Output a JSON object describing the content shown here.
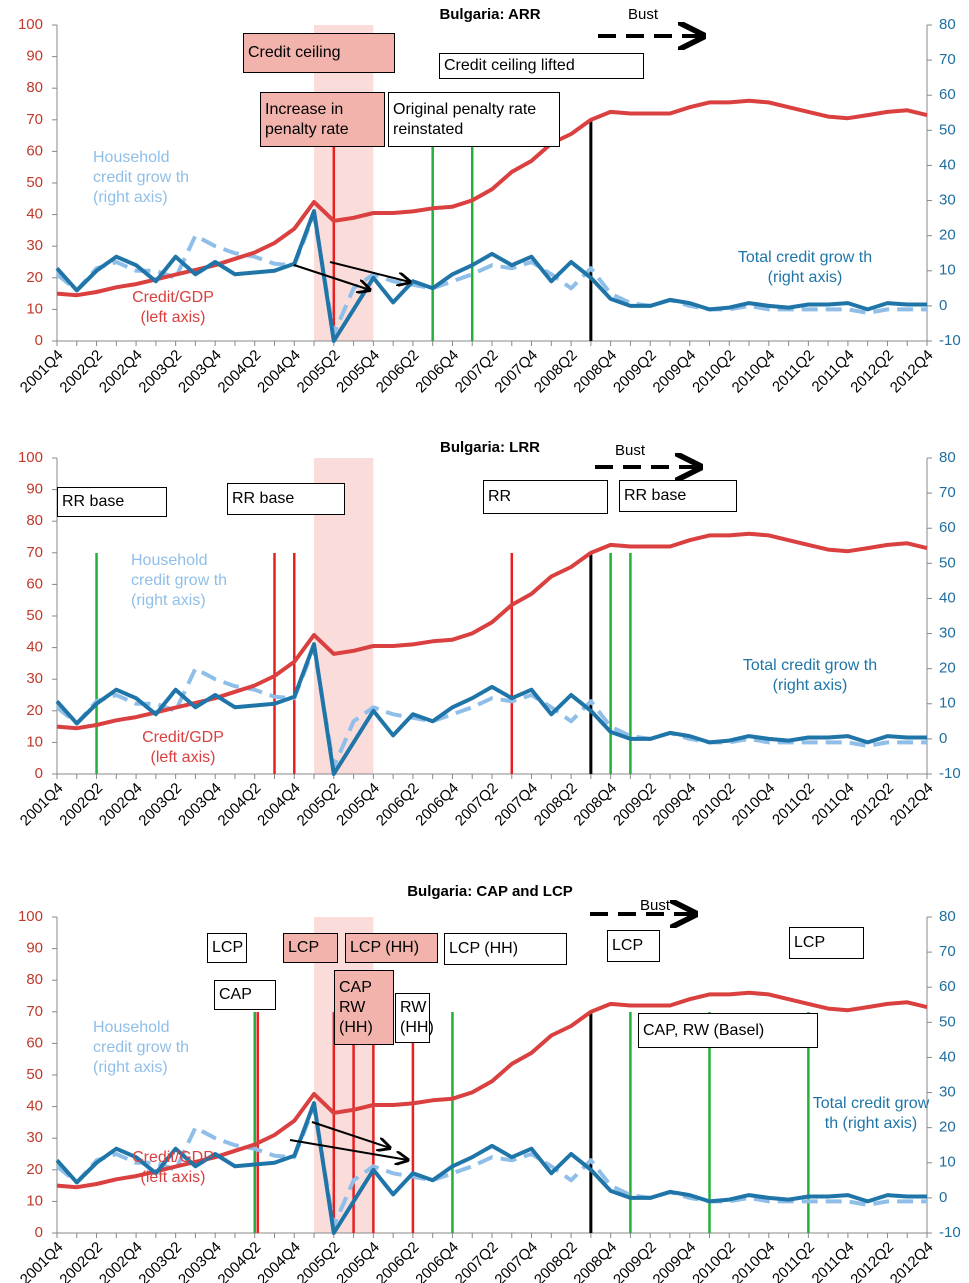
{
  "chart_data": [
    {
      "type": "line",
      "title": "Bulgaria: ARR",
      "categories": [
        "2001Q4",
        null,
        "2002Q2",
        null,
        "2002Q4",
        null,
        "2003Q2",
        null,
        "2003Q4",
        null,
        "2004Q2",
        null,
        "2004Q4",
        null,
        "2005Q2",
        null,
        "2005Q4",
        null,
        "2006Q2",
        null,
        "2006Q4",
        null,
        "2007Q2",
        null,
        "2007Q4",
        null,
        "2008Q2",
        null,
        "2008Q4",
        null,
        "2009Q2",
        null,
        "2009Q4",
        null,
        "2010Q2",
        null,
        "2010Q4",
        null,
        "2011Q2",
        null,
        "2011Q4",
        null,
        "2012Q2",
        null,
        "2012Q4"
      ],
      "ylim": [
        0,
        100
      ],
      "yticks": [
        0,
        10,
        20,
        30,
        40,
        50,
        60,
        70,
        80,
        90,
        100
      ],
      "y2lim": [
        -10,
        80
      ],
      "y2ticks": [
        -10,
        0,
        10,
        20,
        30,
        40,
        50,
        60,
        70,
        80
      ],
      "series": [
        {
          "name": "Household credit grow th (right axis)",
          "color": "#8fbfe8",
          "style": "dashed",
          "axis": "y2",
          "values": [
            9,
            4.4,
            10.7,
            12.5,
            10,
            10,
            8,
            20,
            17,
            15,
            14,
            12,
            11.6,
            26,
            -8,
            5,
            9,
            7,
            6,
            5,
            7,
            9,
            11.6,
            10.7,
            12.5,
            9,
            5,
            10.7,
            3.5,
            0.8,
            0,
            1.7,
            0,
            -1,
            -1,
            0,
            -1,
            -1,
            -1,
            -1,
            -1,
            -2,
            -1,
            -1,
            -1
          ]
        },
        {
          "name": "Credit/GDP (left axis)",
          "color": "#d9403f",
          "style": "solid",
          "values": [
            15,
            14.5,
            15.5,
            17,
            18,
            19.5,
            21,
            22.5,
            24,
            26,
            28,
            31,
            35.5,
            44,
            38,
            39,
            40.5,
            40.5,
            41,
            42,
            42.5,
            44.5,
            48,
            53.5,
            57,
            62.5,
            65.5,
            70,
            72.5,
            72,
            72,
            72,
            74,
            75.5,
            75.5,
            76,
            75.5,
            74,
            72.5,
            71,
            70.5,
            71.5,
            72.5,
            73,
            71.5
          ]
        },
        {
          "name": "Total credit grow th (right axis)",
          "color": "#1f75a8",
          "style": "solid",
          "axis": "y2",
          "values": [
            10.7,
            4.4,
            10,
            14,
            11.6,
            7,
            14,
            9,
            12.5,
            9,
            9.5,
            10,
            12,
            27,
            -10,
            -1,
            8,
            1,
            7,
            5,
            9,
            11.6,
            14.8,
            11.6,
            14,
            7,
            12.5,
            8,
            2,
            0,
            0,
            1.7,
            0.8,
            -1,
            -0.5,
            0.8,
            0,
            -0.5,
            0.4,
            0.4,
            0.8,
            -1,
            0.8,
            0.4,
            0.4
          ]
        }
      ],
      "shaded": [
        [
          "2005Q1",
          "2005Q4"
        ]
      ],
      "events": [
        {
          "x": "2005Q2",
          "color": "#e82020"
        },
        {
          "x": "2006Q3",
          "color": "#22b03a"
        },
        {
          "x": "2007Q1",
          "color": "#22b03a"
        },
        {
          "x": "2008Q3",
          "color": "#000000"
        }
      ],
      "annotations": [
        {
          "text": "Credit ceiling",
          "fill": "#f2b3ad"
        },
        {
          "text": "Increase in penalty rate",
          "fill": "#f2b3ad"
        },
        {
          "text": "Original penalty rate reinstated",
          "fill": "#ffffff"
        },
        {
          "text": "Credit ceiling lifted",
          "fill": "#ffffff"
        }
      ],
      "bust": "Bust"
    },
    {
      "type": "line",
      "title": "Bulgaria: LRR",
      "categories": [
        "2001Q4",
        null,
        "2002Q2",
        null,
        "2002Q4",
        null,
        "2003Q2",
        null,
        "2003Q4",
        null,
        "2004Q2",
        null,
        "2004Q4",
        null,
        "2005Q2",
        null,
        "2005Q4",
        null,
        "2006Q2",
        null,
        "2006Q4",
        null,
        "2007Q2",
        null,
        "2007Q4",
        null,
        "2008Q2",
        null,
        "2008Q4",
        null,
        "2009Q2",
        null,
        "2009Q4",
        null,
        "2010Q2",
        null,
        "2010Q4",
        null,
        "2011Q2",
        null,
        "2011Q4",
        null,
        "2012Q2",
        null,
        "2012Q4"
      ],
      "ylim": [
        0,
        100
      ],
      "yticks": [
        0,
        10,
        20,
        30,
        40,
        50,
        60,
        70,
        80,
        90,
        100
      ],
      "y2lim": [
        -10,
        80
      ],
      "y2ticks": [
        -10,
        0,
        10,
        20,
        30,
        40,
        50,
        60,
        70,
        80
      ],
      "series": [
        {
          "name": "Household credit grow th (right axis)",
          "color": "#8fbfe8",
          "style": "dashed",
          "axis": "y2",
          "values": [
            9,
            4.4,
            10.7,
            12.5,
            10,
            10,
            8,
            20,
            17,
            15,
            14,
            12,
            11.6,
            26,
            -8,
            5,
            9,
            7,
            6,
            5,
            7,
            9,
            11.6,
            10.7,
            12.5,
            9,
            5,
            10.7,
            3.5,
            0.8,
            0,
            1.7,
            0,
            -1,
            -1,
            0,
            -1,
            -1,
            -1,
            -1,
            -1,
            -2,
            -1,
            -1,
            -1
          ]
        },
        {
          "name": "Credit/GDP (left axis)",
          "color": "#d9403f",
          "style": "solid",
          "values": [
            15,
            14.5,
            15.5,
            17,
            18,
            19.5,
            21,
            22.5,
            24,
            26,
            28,
            31,
            35.5,
            44,
            38,
            39,
            40.5,
            40.5,
            41,
            42,
            42.5,
            44.5,
            48,
            53.5,
            57,
            62.5,
            65.5,
            70,
            72.5,
            72,
            72,
            72,
            74,
            75.5,
            75.5,
            76,
            75.5,
            74,
            72.5,
            71,
            70.5,
            71.5,
            72.5,
            73,
            71.5
          ]
        },
        {
          "name": "Total credit grow th (right axis)",
          "color": "#1f75a8",
          "style": "solid",
          "axis": "y2",
          "values": [
            10.7,
            4.4,
            10,
            14,
            11.6,
            7,
            14,
            9,
            12.5,
            9,
            9.5,
            10,
            12,
            27,
            -10,
            -1,
            8,
            1,
            7,
            5,
            9,
            11.6,
            14.8,
            11.6,
            14,
            7,
            12.5,
            8,
            2,
            0,
            0,
            1.7,
            0.8,
            -1,
            -0.5,
            0.8,
            0,
            -0.5,
            0.4,
            0.4,
            0.8,
            -1,
            0.8,
            0.4,
            0.4
          ]
        }
      ],
      "shaded": [
        [
          "2005Q1",
          "2005Q4"
        ]
      ],
      "events": [
        {
          "x": "2002Q2",
          "color": "#22b03a"
        },
        {
          "x": "2004Q3",
          "color": "#e82020"
        },
        {
          "x": "2004Q4",
          "color": "#e82020"
        },
        {
          "x": "2007Q3",
          "color": "#e82020"
        },
        {
          "x": "2008Q3",
          "color": "#000000"
        },
        {
          "x": "2008Q4",
          "color": "#22b03a"
        },
        {
          "x": "2009Q1",
          "color": "#22b03a"
        }
      ],
      "annotations": [
        {
          "text": "RR base",
          "fill": "#ffffff"
        },
        {
          "text": "RR base",
          "fill": "#ffffff"
        },
        {
          "text": "RR",
          "fill": "#ffffff"
        },
        {
          "text": "RR base",
          "fill": "#ffffff"
        }
      ],
      "bust": "Bust"
    },
    {
      "type": "line",
      "title": "Bulgaria: CAP and LCP",
      "categories": [
        "2001Q4",
        null,
        "2002Q2",
        null,
        "2002Q4",
        null,
        "2003Q2",
        null,
        "2003Q4",
        null,
        "2004Q2",
        null,
        "2004Q4",
        null,
        "2005Q2",
        null,
        "2005Q4",
        null,
        "2006Q2",
        null,
        "2006Q4",
        null,
        "2007Q2",
        null,
        "2007Q4",
        null,
        "2008Q2",
        null,
        "2008Q4",
        null,
        "2009Q2",
        null,
        "2009Q4",
        null,
        "2010Q2",
        null,
        "2010Q4",
        null,
        "2011Q2",
        null,
        "2011Q4",
        null,
        "2012Q2",
        null,
        "2012Q4"
      ],
      "ylim": [
        0,
        100
      ],
      "yticks": [
        0,
        10,
        20,
        30,
        40,
        50,
        60,
        70,
        80,
        90,
        100
      ],
      "y2lim": [
        -10,
        80
      ],
      "y2ticks": [
        -10,
        0,
        10,
        20,
        30,
        40,
        50,
        60,
        70,
        80
      ],
      "series": [
        {
          "name": "Household credit grow th (right axis)",
          "color": "#8fbfe8",
          "style": "dashed",
          "axis": "y2",
          "values": [
            9,
            4.4,
            10.7,
            12.5,
            10,
            10,
            8,
            20,
            17,
            15,
            14,
            12,
            11.6,
            26,
            -8,
            5,
            9,
            7,
            6,
            5,
            7,
            9,
            11.6,
            10.7,
            12.5,
            9,
            5,
            10.7,
            3.5,
            0.8,
            0,
            1.7,
            0,
            -1,
            -1,
            0,
            -1,
            -1,
            -1,
            -1,
            -1,
            -2,
            -1,
            -1,
            -1
          ]
        },
        {
          "name": "Credit/GDP (left axis)",
          "color": "#d9403f",
          "style": "solid",
          "values": [
            15,
            14.5,
            15.5,
            17,
            18,
            19.5,
            21,
            22.5,
            24,
            26,
            28,
            31,
            35.5,
            44,
            38,
            39,
            40.5,
            40.5,
            41,
            42,
            42.5,
            44.5,
            48,
            53.5,
            57,
            62.5,
            65.5,
            70,
            72.5,
            72,
            72,
            72,
            74,
            75.5,
            75.5,
            76,
            75.5,
            74,
            72.5,
            71,
            70.5,
            71.5,
            72.5,
            73,
            71.5
          ]
        },
        {
          "name": "Total credit grow th (right axis)",
          "color": "#1f75a8",
          "style": "solid",
          "axis": "y2",
          "values": [
            10.7,
            4.4,
            10,
            14,
            11.6,
            7,
            14,
            9,
            12.5,
            9,
            9.5,
            10,
            12,
            27,
            -10,
            -1,
            8,
            1,
            7,
            5,
            9,
            11.6,
            14.8,
            11.6,
            14,
            7,
            12.5,
            8,
            2,
            0,
            0,
            1.7,
            0.8,
            -1,
            -0.5,
            0.8,
            0,
            -0.5,
            0.4,
            0.4,
            0.8,
            -1,
            0.8,
            0.4,
            0.4
          ]
        }
      ],
      "shaded": [
        [
          "2005Q1",
          "2005Q4"
        ]
      ],
      "events": [
        {
          "x": "2004Q2",
          "color": "#22b03a"
        },
        {
          "x": "2004Q2",
          "color": "#e82020"
        },
        {
          "x": "2005Q2",
          "color": "#e82020"
        },
        {
          "x": "2005Q3",
          "color": "#e82020"
        },
        {
          "x": "2005Q4",
          "color": "#e82020"
        },
        {
          "x": "2006Q2",
          "color": "#e82020"
        },
        {
          "x": "2006Q4",
          "color": "#22b03a"
        },
        {
          "x": "2008Q3",
          "color": "#000000"
        },
        {
          "x": "2009Q1",
          "color": "#22b03a"
        },
        {
          "x": "2010Q1",
          "color": "#22b03a"
        },
        {
          "x": "2011Q2",
          "color": "#22b03a"
        }
      ],
      "annotations": [
        {
          "text": "LCP",
          "fill": "#ffffff"
        },
        {
          "text": "CAP",
          "fill": "#ffffff"
        },
        {
          "text": "LCP",
          "fill": "#f2b3ad"
        },
        {
          "text": "LCP (HH)",
          "fill": "#f2b3ad"
        },
        {
          "text": "CAP RW (HH)",
          "fill": "#f2b3ad"
        },
        {
          "text": "RW (HH)",
          "fill": "#ffffff"
        },
        {
          "text": "LCP (HH)",
          "fill": "#ffffff"
        },
        {
          "text": "LCP",
          "fill": "#ffffff"
        },
        {
          "text": "CAP, RW (Basel)",
          "fill": "#ffffff"
        },
        {
          "text": "LCP",
          "fill": "#ffffff"
        }
      ],
      "bust": "Bust"
    }
  ]
}
